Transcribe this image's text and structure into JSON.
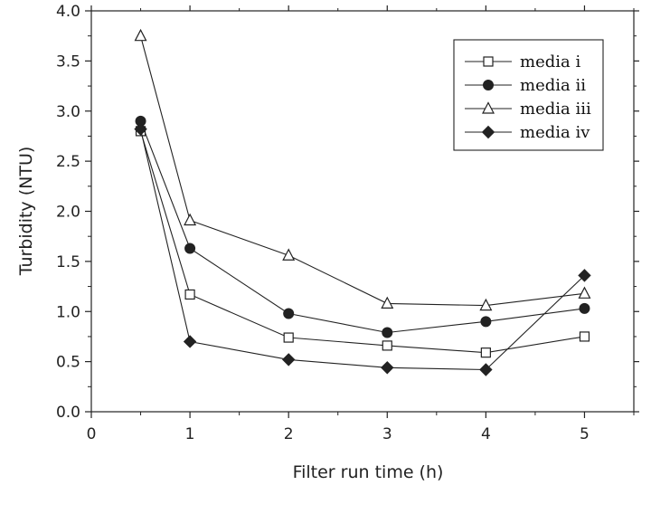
{
  "chart_data": {
    "type": "line",
    "title": "",
    "xlabel": "Filter run time (h)",
    "ylabel": "Turbidity (NTU)",
    "xlim": [
      0,
      5.5
    ],
    "ylim": [
      0,
      4.0
    ],
    "xticks": [
      0,
      1,
      2,
      3,
      4,
      5
    ],
    "xtick_labels": [
      "0",
      "1",
      "2",
      "3",
      "4",
      "5"
    ],
    "yticks": [
      0.0,
      0.5,
      1.0,
      1.5,
      2.0,
      2.5,
      3.0,
      3.5,
      4.0
    ],
    "ytick_labels": [
      "0.0",
      "0.5",
      "1.0",
      "1.5",
      "2.0",
      "2.5",
      "3.0",
      "3.5",
      "4.0"
    ],
    "grid": false,
    "legend_position": "top-right",
    "x": [
      0.5,
      1,
      2,
      3,
      4,
      5
    ],
    "series": [
      {
        "name": "media i",
        "marker": "square-open",
        "values": [
          2.8,
          1.17,
          0.74,
          0.66,
          0.59,
          0.75
        ]
      },
      {
        "name": "media ii",
        "marker": "circle-filled",
        "values": [
          2.9,
          1.63,
          0.98,
          0.79,
          0.9,
          1.03
        ]
      },
      {
        "name": "media iii",
        "marker": "triangle-open",
        "values": [
          3.75,
          1.91,
          1.56,
          1.08,
          1.06,
          1.18
        ]
      },
      {
        "name": "media iv",
        "marker": "diamond-filled",
        "values": [
          2.82,
          0.7,
          0.52,
          0.44,
          0.42,
          1.36
        ]
      }
    ]
  }
}
